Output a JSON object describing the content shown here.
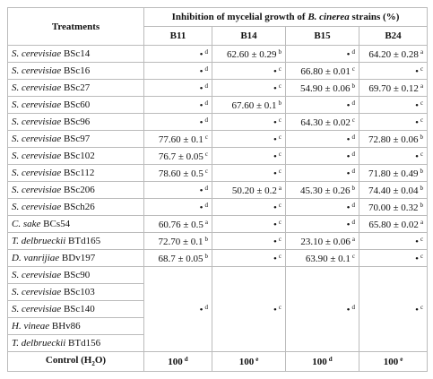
{
  "header": {
    "treatments": "Treatments",
    "title": {
      "before": "Inhibition of mycelial growth of ",
      "italic": "B. cinerea",
      "after": " strains (%)"
    },
    "strains": [
      "B11",
      "B14",
      "B15",
      "B24"
    ]
  },
  "rows": [
    {
      "treatments": [
        {
          "species": "S. cerevisiae",
          "strain": "BSc14"
        }
      ],
      "cells": [
        {
          "value": "•",
          "letter": "d"
        },
        {
          "value": "62.60 ± 0.29",
          "letter": "b"
        },
        {
          "value": "•",
          "letter": "d"
        },
        {
          "value": "64.20 ± 0.28",
          "letter": "a"
        }
      ]
    },
    {
      "treatments": [
        {
          "species": "S. cerevisiae",
          "strain": "BSc16"
        }
      ],
      "cells": [
        {
          "value": "•",
          "letter": "d"
        },
        {
          "value": "•",
          "letter": "c"
        },
        {
          "value": "66.80 ± 0.01",
          "letter": "c"
        },
        {
          "value": "•",
          "letter": "c"
        }
      ]
    },
    {
      "treatments": [
        {
          "species": "S. cerevisiae",
          "strain": "BSc27"
        }
      ],
      "cells": [
        {
          "value": "•",
          "letter": "d"
        },
        {
          "value": "•",
          "letter": "c"
        },
        {
          "value": "54.90 ± 0.06",
          "letter": "b"
        },
        {
          "value": "69.70 ± 0.12",
          "letter": "a"
        }
      ]
    },
    {
      "treatments": [
        {
          "species": "S. cerevisiae",
          "strain": "BSc60"
        }
      ],
      "cells": [
        {
          "value": "•",
          "letter": "d"
        },
        {
          "value": "67.60 ± 0.1",
          "letter": "b"
        },
        {
          "value": "•",
          "letter": "d"
        },
        {
          "value": "•",
          "letter": "c"
        }
      ]
    },
    {
      "treatments": [
        {
          "species": "S. cerevisiae",
          "strain": "BSc96"
        }
      ],
      "cells": [
        {
          "value": "•",
          "letter": "d"
        },
        {
          "value": "•",
          "letter": "c"
        },
        {
          "value": "64.30 ± 0.02",
          "letter": "c"
        },
        {
          "value": "•",
          "letter": "c"
        }
      ]
    },
    {
      "treatments": [
        {
          "species": "S. cerevisiae",
          "strain": "BSc97"
        }
      ],
      "cells": [
        {
          "value": "77.60 ± 0.1",
          "letter": "c"
        },
        {
          "value": "•",
          "letter": "c"
        },
        {
          "value": "•",
          "letter": "d"
        },
        {
          "value": "72.80 ± 0.06",
          "letter": "b"
        }
      ]
    },
    {
      "treatments": [
        {
          "species": "S. cerevisiae",
          "strain": "BSc102"
        }
      ],
      "cells": [
        {
          "value": "76.7 ± 0.05",
          "letter": "c"
        },
        {
          "value": "•",
          "letter": "c"
        },
        {
          "value": "•",
          "letter": "d"
        },
        {
          "value": "•",
          "letter": "c"
        }
      ]
    },
    {
      "treatments": [
        {
          "species": "S. cerevisiae",
          "strain": "BSc112"
        }
      ],
      "cells": [
        {
          "value": "78.60 ± 0.5",
          "letter": "c"
        },
        {
          "value": "•",
          "letter": "c"
        },
        {
          "value": "•",
          "letter": "d"
        },
        {
          "value": "71.80 ± 0.49",
          "letter": "b"
        }
      ]
    },
    {
      "treatments": [
        {
          "species": "S. cerevisiae",
          "strain": "BSc206"
        }
      ],
      "cells": [
        {
          "value": "•",
          "letter": "d"
        },
        {
          "value": "50.20 ± 0.2",
          "letter": "a"
        },
        {
          "value": "45.30 ± 0.26",
          "letter": "b"
        },
        {
          "value": "74.40 ± 0.04",
          "letter": "b"
        }
      ]
    },
    {
      "treatments": [
        {
          "species": "S. cerevisiae",
          "strain": "BSch26"
        }
      ],
      "cells": [
        {
          "value": "•",
          "letter": "d"
        },
        {
          "value": "•",
          "letter": "c"
        },
        {
          "value": "•",
          "letter": "d"
        },
        {
          "value": "70.00 ± 0.32",
          "letter": "b"
        }
      ]
    },
    {
      "treatments": [
        {
          "species": "C. sake",
          "strain": "BCs54"
        }
      ],
      "cells": [
        {
          "value": "60.76 ± 0.5",
          "letter": "a"
        },
        {
          "value": "•",
          "letter": "c"
        },
        {
          "value": "•",
          "letter": "d"
        },
        {
          "value": "65.80 ± 0.02",
          "letter": "a"
        }
      ]
    },
    {
      "treatments": [
        {
          "species": "T. delbrueckii",
          "strain": "BTd165"
        }
      ],
      "cells": [
        {
          "value": "72.70 ± 0.1",
          "letter": "b"
        },
        {
          "value": "•",
          "letter": "c"
        },
        {
          "value": "23.10 ± 0.06",
          "letter": "a"
        },
        {
          "value": "•",
          "letter": "c"
        }
      ]
    },
    {
      "treatments": [
        {
          "species": "D. vanrijiae",
          "strain": "BDv197"
        }
      ],
      "cells": [
        {
          "value": "68.7 ± 0.05",
          "letter": "b"
        },
        {
          "value": "•",
          "letter": "c"
        },
        {
          "value": "63.90 ± 0.1",
          "letter": "c"
        },
        {
          "value": "•",
          "letter": "c"
        }
      ]
    },
    {
      "treatments": [
        {
          "species": "S. cerevisiae",
          "strain": "BSc90"
        },
        {
          "species": "S. cerevisiae",
          "strain": "BSc103"
        },
        {
          "species": "S. cerevisiae",
          "strain": "BSc140"
        },
        {
          "species": "H. vineae",
          "strain": "BHv86"
        },
        {
          "species": "T. delbrueckii",
          "strain": "BTd156"
        }
      ],
      "cells": [
        {
          "value": "•",
          "letter": "d"
        },
        {
          "value": "•",
          "letter": "c"
        },
        {
          "value": "•",
          "letter": "d"
        },
        {
          "value": "•",
          "letter": "c"
        }
      ]
    }
  ],
  "control": {
    "label": {
      "before": "Control (H",
      "sub": "2",
      "after": "O)"
    },
    "cells": [
      {
        "value": "100",
        "letter": "d"
      },
      {
        "value": "100",
        "letter": "e"
      },
      {
        "value": "100",
        "letter": "d"
      },
      {
        "value": "100",
        "letter": "e"
      }
    ]
  }
}
